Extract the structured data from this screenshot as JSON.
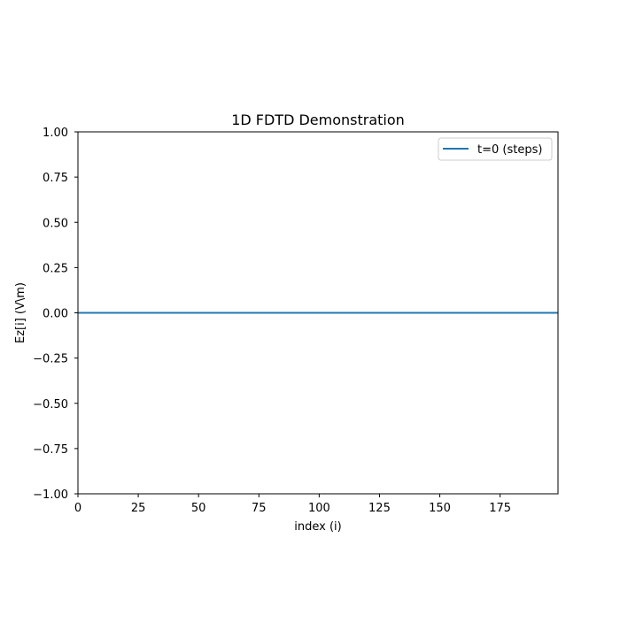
{
  "chart_data": {
    "type": "line",
    "title": "1D FDTD Demonstration",
    "xlabel": "index (i)",
    "ylabel": "Ez[i] (V\\m)",
    "xlim": [
      0,
      199
    ],
    "ylim": [
      -1.0,
      1.0
    ],
    "x_ticks": [
      0,
      25,
      50,
      75,
      100,
      125,
      150,
      175
    ],
    "x_tick_labels": [
      "0",
      "25",
      "50",
      "75",
      "100",
      "125",
      "150",
      "175"
    ],
    "y_ticks": [
      -1.0,
      -0.75,
      -0.5,
      -0.25,
      0.0,
      0.25,
      0.5,
      0.75,
      1.0
    ],
    "y_tick_labels": [
      "−1.00",
      "−0.75",
      "−0.50",
      "−0.25",
      "0.00",
      "0.25",
      "0.50",
      "0.75",
      "1.00"
    ],
    "grid": false,
    "legend_position": "top-right",
    "series": [
      {
        "name": "t=0 (steps)",
        "color": "#1f77b4",
        "x": [
          0,
          199
        ],
        "y": [
          0.0,
          0.0
        ]
      }
    ]
  }
}
